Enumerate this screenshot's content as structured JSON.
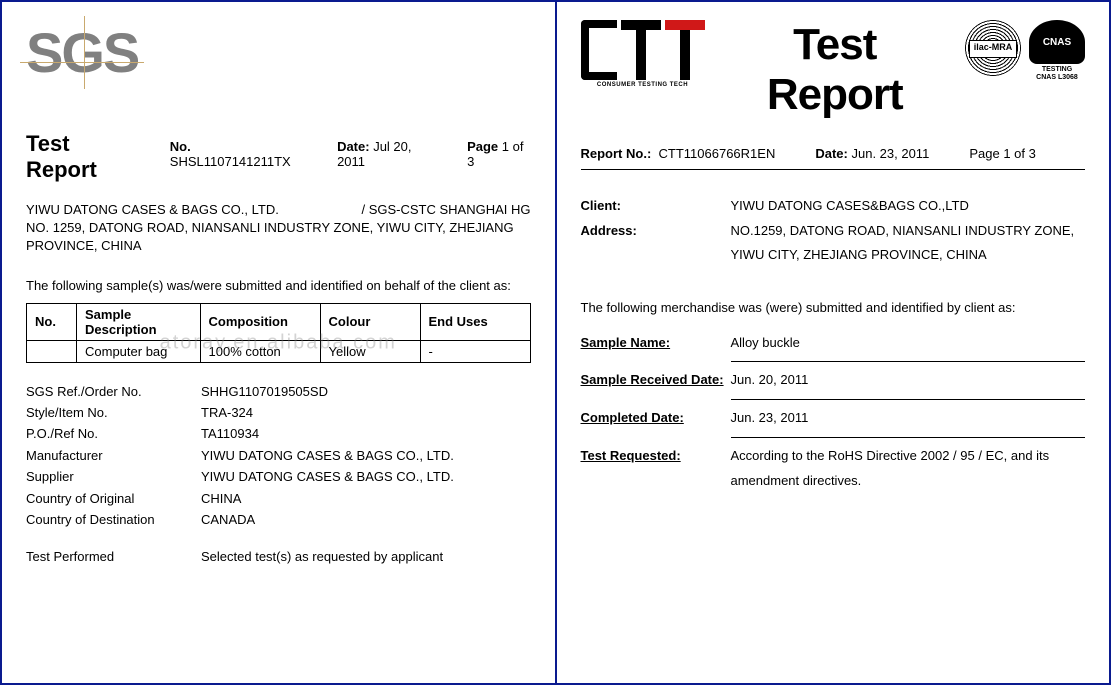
{
  "watermark": "atoray.en.alibaba.com",
  "left": {
    "logo_text": "SGS",
    "title": "Test Report",
    "report_no_label": "No.",
    "report_no": "SHSL1107141211TX",
    "date_label": "Date:",
    "date": "Jul 20, 2011",
    "page_label": "Page",
    "page": "1 of 3",
    "company_line1_left": "YIWU DATONG CASES & BAGS CO., LTD.",
    "company_line1_right": "/ SGS-CSTC SHANGHAI HG",
    "company_line2": "NO. 1259, DATONG ROAD, NIANSANLI INDUSTRY ZONE, YIWU CITY, ZHEJIANG PROVINCE, CHINA",
    "intro": "The following sample(s) was/were submitted and identified on behalf of the client as:",
    "table": {
      "columns": [
        "No.",
        "Sample Description",
        "Composition",
        "Colour",
        "End Uses"
      ],
      "col_widths": [
        "50px",
        "auto",
        "120px",
        "100px",
        "110px"
      ],
      "rows": [
        [
          "",
          "Computer bag",
          "100% cotton",
          "Yellow",
          "-"
        ]
      ]
    },
    "info": [
      {
        "label": "SGS Ref./Order No.",
        "value": "SHHG1107019505SD"
      },
      {
        "label": "Style/Item No.",
        "value": "TRA-324"
      },
      {
        "label": "P.O./Ref No.",
        "value": "TA110934"
      },
      {
        "label": "Manufacturer",
        "value": "YIWU DATONG CASES & BAGS CO., LTD."
      },
      {
        "label": "Supplier",
        "value": "YIWU DATONG CASES & BAGS CO., LTD."
      },
      {
        "label": "Country of Original",
        "value": "CHINA"
      },
      {
        "label": "Country of Destination",
        "value": "CANADA"
      }
    ],
    "test_performed_label": "Test Performed",
    "test_performed_value": "Selected test(s) as requested by applicant"
  },
  "right": {
    "ctt_sub": "CONSUMER TESTING TECH",
    "title": "Test Report",
    "ilac_label": "ilac-MRA",
    "cnas_label": "CNAS",
    "cnas_sub1": "TESTING",
    "cnas_sub2": "CNAS L3068",
    "report_no_label": "Report No.:",
    "report_no": "CTT11066766R1EN",
    "date_label": "Date:",
    "date": "Jun. 23, 2011",
    "page_label": "Page",
    "page": "1 of 3",
    "client_label": "Client:",
    "client_value": "YIWU DATONG CASES&BAGS CO.,LTD",
    "address_label": "Address:",
    "address_value": "NO.1259, DATONG ROAD, NIANSANLI INDUSTRY ZONE, YIWU CITY, ZHEJIANG PROVINCE, CHINA",
    "intro": "The following merchandise was (were) submitted and identified by client as:",
    "fields": [
      {
        "label": "Sample Name:",
        "value": "Alloy buckle"
      },
      {
        "label": "Sample Received Date:",
        "value": "Jun. 20, 2011"
      },
      {
        "label": "Completed Date:",
        "value": "Jun. 23, 2011"
      },
      {
        "label": "Test Requested:",
        "value": "According to the RoHS Directive 2002 / 95 / EC, and its amendment directives."
      }
    ]
  },
  "colors": {
    "border": "#0a1a8f",
    "logo_gray": "#808080",
    "ctt_red": "#d01818"
  }
}
